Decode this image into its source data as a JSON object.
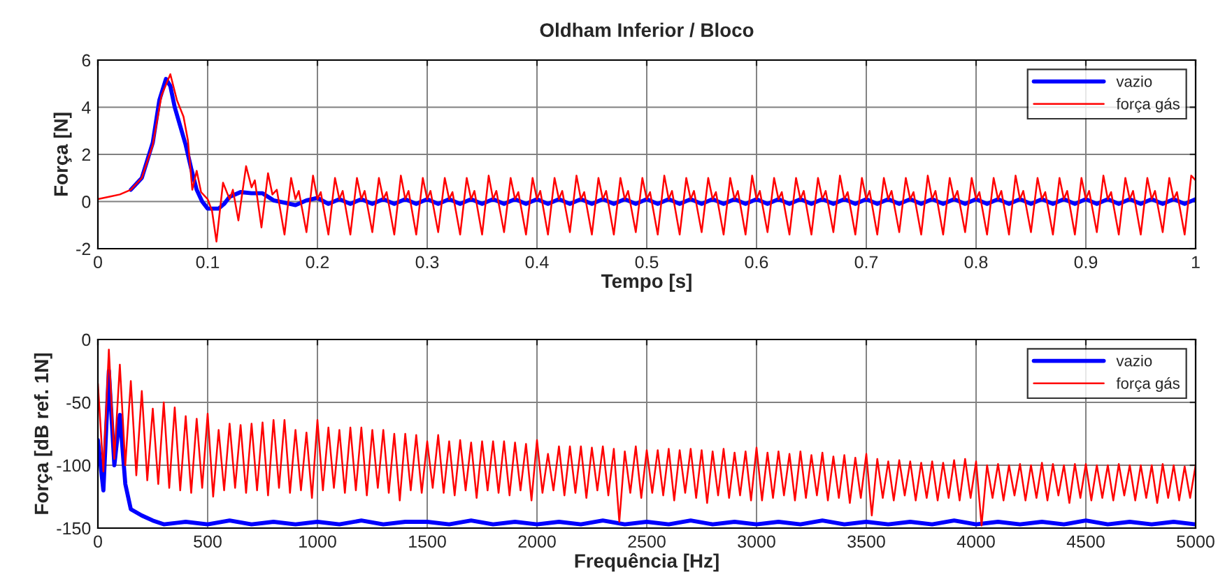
{
  "chart_data": [
    {
      "type": "line",
      "title": "Oldham Inferior / Bloco",
      "xlabel": "Tempo [s]",
      "ylabel": "Força [N]",
      "xlim": [
        0,
        1
      ],
      "ylim": [
        -2,
        6
      ],
      "xticks": [
        0,
        0.1,
        0.2,
        0.3,
        0.4,
        0.5,
        0.6,
        0.7,
        0.8,
        0.9,
        1
      ],
      "yticks": [
        -2,
        0,
        2,
        4,
        6
      ],
      "grid": true,
      "legend": "top right",
      "series": [
        {
          "name": "vazio",
          "color": "#0000ff",
          "x": [
            0.03,
            0.04,
            0.05,
            0.056,
            0.062,
            0.066,
            0.07,
            0.075,
            0.08,
            0.085,
            0.09,
            0.095,
            0.1,
            0.11,
            0.115,
            0.12,
            0.13,
            0.14,
            0.15,
            0.16,
            0.17,
            0.18,
            0.19,
            0.2,
            0.21,
            0.22,
            0.23,
            0.24,
            0.25,
            0.26,
            0.27,
            0.28,
            0.29,
            0.3,
            0.31,
            0.32,
            0.33,
            0.34,
            0.35,
            0.36,
            0.37,
            0.38,
            0.39,
            0.4,
            0.41,
            0.42,
            0.43,
            0.44,
            0.45,
            0.46,
            0.47,
            0.48,
            0.49,
            0.5,
            0.51,
            0.52,
            0.53,
            0.54,
            0.55,
            0.56,
            0.57,
            0.58,
            0.59,
            0.6,
            0.61,
            0.62,
            0.63,
            0.64,
            0.65,
            0.66,
            0.67,
            0.68,
            0.69,
            0.7,
            0.71,
            0.72,
            0.73,
            0.74,
            0.75,
            0.76,
            0.77,
            0.78,
            0.79,
            0.8,
            0.81,
            0.82,
            0.83,
            0.84,
            0.85,
            0.86,
            0.87,
            0.88,
            0.89,
            0.9,
            0.91,
            0.92,
            0.93,
            0.94,
            0.95,
            0.96,
            0.97,
            0.98,
            0.99,
            1
          ],
          "values": [
            0.5,
            1.0,
            2.5,
            4.3,
            5.2,
            4.9,
            4.0,
            3.2,
            2.4,
            1.4,
            0.5,
            0.0,
            -0.3,
            -0.3,
            -0.1,
            0.2,
            0.4,
            0.35,
            0.35,
            0.05,
            -0.05,
            -0.15,
            0.05,
            0.15,
            -0.1,
            0.1,
            -0.1,
            0.1,
            -0.1,
            0.1,
            -0.1,
            0.1,
            -0.1,
            0.1,
            -0.1,
            0.1,
            -0.1,
            0.1,
            -0.1,
            0.1,
            -0.1,
            0.1,
            -0.1,
            0.1,
            -0.1,
            0.1,
            -0.1,
            0.1,
            -0.1,
            0.1,
            -0.1,
            0.1,
            -0.1,
            0.1,
            -0.1,
            0.1,
            -0.1,
            0.1,
            -0.1,
            0.1,
            -0.1,
            0.1,
            -0.1,
            0.1,
            -0.1,
            0.1,
            -0.1,
            0.1,
            -0.1,
            0.1,
            -0.1,
            0.1,
            -0.1,
            0.1,
            -0.1,
            0.1,
            -0.1,
            0.1,
            -0.1,
            0.1,
            -0.1,
            0.1,
            -0.1,
            0.1,
            -0.1,
            0.1,
            -0.1,
            0.1,
            -0.1,
            0.1,
            -0.1,
            0.1,
            -0.1,
            0.1,
            -0.1,
            0.1,
            -0.1,
            0.1,
            -0.1,
            0.1,
            -0.1,
            0.1,
            -0.1,
            0.1
          ]
        },
        {
          "name": "força gás",
          "color": "#ff0000",
          "x": [
            0,
            0.01,
            0.02,
            0.03,
            0.04,
            0.05,
            0.058,
            0.066,
            0.072,
            0.078,
            0.082,
            0.086,
            0.09,
            0.094,
            0.1,
            0.104,
            0.108,
            0.114,
            0.12,
            0.123,
            0.128,
            0.135,
            0.14,
            0.143,
            0.149,
            0.155,
            0.159,
            0.163,
            0.17,
            0.176,
            0.18,
            0.183,
            0.19,
            0.196,
            0.2,
            0.203,
            0.21,
            0.216,
            0.22,
            0.223,
            0.23,
            0.236,
            0.24,
            0.243,
            0.25,
            0.256,
            0.26,
            0.263,
            0.27,
            0.276,
            0.28,
            0.283,
            0.29,
            0.296,
            0.3,
            0.303,
            0.31,
            0.316,
            0.32,
            0.323,
            0.33,
            0.336,
            0.34,
            0.343,
            0.35,
            0.356,
            0.36,
            0.363,
            0.37,
            0.376,
            0.38,
            0.383,
            0.39,
            0.396,
            0.4,
            0.403,
            0.41,
            0.416,
            0.42,
            0.423,
            0.43,
            0.436,
            0.44,
            0.443,
            0.45,
            0.456,
            0.46,
            0.463,
            0.47,
            0.476,
            0.48,
            0.483,
            0.49,
            0.496,
            0.5,
            0.503,
            0.51,
            0.516,
            0.52,
            0.523,
            0.53,
            0.536,
            0.54,
            0.543,
            0.55,
            0.556,
            0.56,
            0.563,
            0.57,
            0.576,
            0.58,
            0.583,
            0.59,
            0.596,
            0.6,
            0.603,
            0.61,
            0.616,
            0.62,
            0.623,
            0.63,
            0.636,
            0.64,
            0.643,
            0.65,
            0.656,
            0.66,
            0.663,
            0.67,
            0.676,
            0.68,
            0.683,
            0.69,
            0.696,
            0.7,
            0.703,
            0.71,
            0.716,
            0.72,
            0.723,
            0.73,
            0.736,
            0.74,
            0.743,
            0.75,
            0.756,
            0.76,
            0.763,
            0.77,
            0.776,
            0.78,
            0.783,
            0.79,
            0.796,
            0.8,
            0.803,
            0.81,
            0.816,
            0.82,
            0.823,
            0.83,
            0.836,
            0.84,
            0.843,
            0.85,
            0.856,
            0.86,
            0.863,
            0.87,
            0.876,
            0.88,
            0.883,
            0.89,
            0.896,
            0.9,
            0.903,
            0.91,
            0.916,
            0.92,
            0.923,
            0.93,
            0.936,
            0.94,
            0.943,
            0.95,
            0.956,
            0.96,
            0.963,
            0.97,
            0.976,
            0.98,
            0.983,
            0.99,
            0.996,
            1
          ],
          "values": [
            0.1,
            0.2,
            0.3,
            0.5,
            1.0,
            2.4,
            4.5,
            5.4,
            4.3,
            3.6,
            2.6,
            0.5,
            1.3,
            0.4,
            0.1,
            -0.4,
            -1.7,
            0.8,
            0.1,
            0.5,
            -0.8,
            1.5,
            0.6,
            0.9,
            -1.1,
            1.2,
            0.3,
            0.5,
            -1.4,
            1.0,
            0.1,
            0.45,
            -1.3,
            1.1,
            0.1,
            0.4,
            -1.4,
            1.0,
            0.1,
            0.45,
            -1.4,
            1.0,
            0.1,
            0.45,
            -1.3,
            1.0,
            0.1,
            0.4,
            -1.4,
            1.1,
            0.1,
            0.45,
            -1.4,
            1.0,
            0.1,
            0.45,
            -1.3,
            1.0,
            0.1,
            0.4,
            -1.4,
            1.0,
            0.1,
            0.45,
            -1.4,
            1.1,
            0.1,
            0.45,
            -1.3,
            1.0,
            0.1,
            0.4,
            -1.4,
            1.0,
            0.1,
            0.45,
            -1.4,
            1.0,
            0.1,
            0.45,
            -1.3,
            1.1,
            0.1,
            0.4,
            -1.4,
            1.0,
            0.1,
            0.45,
            -1.4,
            1.0,
            0.1,
            0.45,
            -1.3,
            1.0,
            0.1,
            0.4,
            -1.4,
            1.1,
            0.1,
            0.45,
            -1.4,
            1.0,
            0.1,
            0.45,
            -1.3,
            1.0,
            0.1,
            0.4,
            -1.4,
            1.0,
            0.1,
            0.45,
            -1.4,
            1.1,
            0.1,
            0.45,
            -1.3,
            1.0,
            0.1,
            0.4,
            -1.4,
            1.0,
            0.1,
            0.45,
            -1.4,
            1.0,
            0.1,
            0.45,
            -1.3,
            1.1,
            0.1,
            0.4,
            -1.4,
            1.0,
            0.1,
            0.45,
            -1.4,
            1.0,
            0.1,
            0.45,
            -1.3,
            1.0,
            0.1,
            0.4,
            -1.4,
            1.1,
            0.1,
            0.45,
            -1.4,
            1.0,
            0.1,
            0.45,
            -1.3,
            1.0,
            0.1,
            0.4,
            -1.4,
            1.0,
            0.1,
            0.45,
            -1.4,
            1.1,
            0.1,
            0.45,
            -1.3,
            1.0,
            0.1,
            0.4,
            -1.4,
            1.0,
            0.1,
            0.45,
            -1.4,
            1.0,
            0.1,
            0.45,
            -1.3,
            1.1,
            0.1,
            0.4,
            -1.4,
            1.0,
            0.1,
            0.45,
            -1.4,
            1.0,
            0.1,
            0.45,
            -1.3,
            1.0,
            0.1,
            0.4,
            -1.4,
            1.1,
            0.9
          ]
        }
      ]
    },
    {
      "type": "line",
      "xlabel": "Frequência [Hz]",
      "ylabel": "Força [dB ref. 1N]",
      "xlim": [
        0,
        5000
      ],
      "ylim": [
        -150,
        0
      ],
      "xticks": [
        0,
        500,
        1000,
        1500,
        2000,
        2500,
        3000,
        3500,
        4000,
        4500,
        5000
      ],
      "yticks": [
        -150,
        -100,
        -50,
        0
      ],
      "grid": true,
      "legend": "top right",
      "series": [
        {
          "name": "vazio",
          "color": "#0000ff",
          "x": [
            0,
            25,
            50,
            75,
            100,
            125,
            150,
            200,
            250,
            300,
            400,
            500,
            600,
            700,
            800,
            900,
            1000,
            1100,
            1200,
            1300,
            1400,
            1500,
            1600,
            1700,
            1800,
            1900,
            2000,
            2100,
            2200,
            2300,
            2400,
            2500,
            2600,
            2700,
            2800,
            2900,
            3000,
            3100,
            3200,
            3300,
            3400,
            3500,
            3600,
            3700,
            3800,
            3900,
            4000,
            4100,
            4200,
            4300,
            4400,
            4500,
            4600,
            4700,
            4800,
            4900,
            5000
          ],
          "values": [
            -80,
            -120,
            -25,
            -100,
            -60,
            -115,
            -135,
            -140,
            -144,
            -147,
            -145,
            -147,
            -144,
            -147,
            -145,
            -147,
            -145,
            -147,
            -144,
            -147,
            -145,
            -145,
            -147,
            -144,
            -147,
            -145,
            -147,
            -145,
            -147,
            -144,
            -147,
            -145,
            -147,
            -144,
            -147,
            -145,
            -147,
            -145,
            -147,
            -144,
            -147,
            -145,
            -147,
            -145,
            -147,
            -144,
            -147,
            -145,
            -147,
            -145,
            -147,
            -144,
            -147,
            -145,
            -147,
            -145,
            -147
          ]
        },
        {
          "name": "força gás",
          "color": "#ff0000",
          "x": [
            0,
            25,
            50,
            75,
            100,
            125,
            150,
            175,
            200,
            225,
            250,
            275,
            300,
            325,
            350,
            375,
            400,
            425,
            450,
            475,
            500,
            525,
            550,
            575,
            600,
            625,
            650,
            675,
            700,
            725,
            750,
            775,
            800,
            825,
            850,
            875,
            900,
            925,
            950,
            975,
            1000,
            1025,
            1050,
            1075,
            1100,
            1125,
            1150,
            1175,
            1200,
            1225,
            1250,
            1275,
            1300,
            1325,
            1350,
            1375,
            1400,
            1425,
            1450,
            1475,
            1500,
            1525,
            1550,
            1575,
            1600,
            1625,
            1650,
            1675,
            1700,
            1725,
            1750,
            1775,
            1800,
            1825,
            1850,
            1875,
            1900,
            1925,
            1950,
            1975,
            2000,
            2025,
            2050,
            2075,
            2100,
            2125,
            2150,
            2175,
            2200,
            2225,
            2250,
            2275,
            2300,
            2325,
            2350,
            2375,
            2400,
            2425,
            2450,
            2475,
            2500,
            2525,
            2550,
            2575,
            2600,
            2625,
            2650,
            2675,
            2700,
            2725,
            2750,
            2775,
            2800,
            2825,
            2850,
            2875,
            2900,
            2925,
            2950,
            2975,
            3000,
            3025,
            3050,
            3075,
            3100,
            3125,
            3150,
            3175,
            3200,
            3225,
            3250,
            3275,
            3300,
            3325,
            3350,
            3375,
            3400,
            3425,
            3450,
            3475,
            3500,
            3525,
            3550,
            3575,
            3600,
            3625,
            3650,
            3675,
            3700,
            3725,
            3750,
            3775,
            3800,
            3825,
            3850,
            3875,
            3900,
            3925,
            3950,
            3975,
            4000,
            4025,
            4050,
            4075,
            4100,
            4125,
            4150,
            4175,
            4200,
            4225,
            4250,
            4275,
            4300,
            4325,
            4350,
            4375,
            4400,
            4425,
            4450,
            4475,
            4500,
            4525,
            4550,
            4575,
            4600,
            4625,
            4650,
            4675,
            4700,
            4725,
            4750,
            4775,
            4800,
            4825,
            4850,
            4875,
            4900,
            4925,
            4950,
            4975,
            5000
          ],
          "values": [
            -35,
            -105,
            -8,
            -95,
            -20,
            -100,
            -33,
            -108,
            -41,
            -112,
            -55,
            -115,
            -50,
            -118,
            -54,
            -120,
            -61,
            -122,
            -63,
            -118,
            -59,
            -125,
            -72,
            -120,
            -67,
            -118,
            -68,
            -122,
            -67,
            -120,
            -66,
            -124,
            -64,
            -118,
            -64,
            -122,
            -72,
            -120,
            -74,
            -126,
            -64,
            -120,
            -70,
            -118,
            -72,
            -122,
            -70,
            -120,
            -70,
            -124,
            -72,
            -118,
            -72,
            -122,
            -75,
            -128,
            -75,
            -120,
            -76,
            -122,
            -81,
            -118,
            -76,
            -122,
            -81,
            -124,
            -80,
            -120,
            -82,
            -126,
            -81,
            -120,
            -81,
            -122,
            -81,
            -124,
            -82,
            -120,
            -83,
            -128,
            -80,
            -122,
            -91,
            -120,
            -85,
            -124,
            -85,
            -122,
            -85,
            -126,
            -86,
            -120,
            -85,
            -124,
            -87,
            -145,
            -89,
            -122,
            -85,
            -126,
            -88,
            -122,
            -88,
            -124,
            -87,
            -128,
            -88,
            -122,
            -87,
            -126,
            -88,
            -130,
            -89,
            -124,
            -87,
            -126,
            -90,
            -124,
            -89,
            -128,
            -86,
            -128,
            -90,
            -126,
            -89,
            -124,
            -91,
            -128,
            -89,
            -126,
            -92,
            -124,
            -90,
            -128,
            -93,
            -126,
            -92,
            -130,
            -94,
            -126,
            -91,
            -140,
            -95,
            -126,
            -97,
            -128,
            -96,
            -124,
            -97,
            -128,
            -98,
            -126,
            -97,
            -128,
            -98,
            -126,
            -96,
            -128,
            -95,
            -126,
            -97,
            -148,
            -100,
            -126,
            -99,
            -128,
            -100,
            -124,
            -99,
            -128,
            -100,
            -126,
            -98,
            -128,
            -99,
            -124,
            -100,
            -130,
            -99,
            -126,
            -99,
            -128,
            -100,
            -126,
            -100,
            -128,
            -99,
            -124,
            -100,
            -128,
            -100,
            -126,
            -100,
            -130,
            -99,
            -126,
            -100,
            -128,
            -101,
            -126,
            -100
          ]
        }
      ]
    }
  ]
}
